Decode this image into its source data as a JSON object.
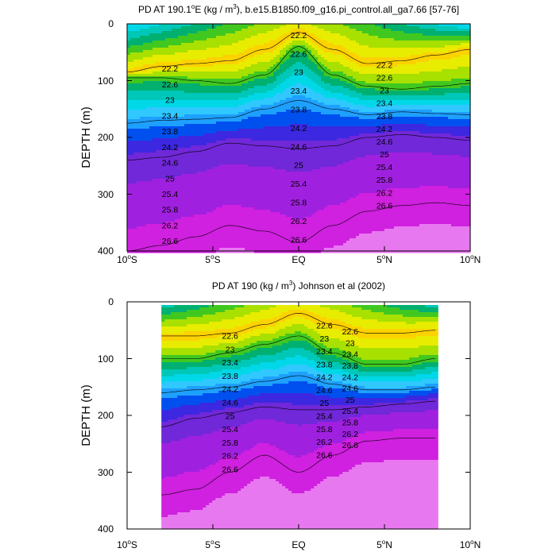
{
  "colors": {
    "scale": [
      "#cc0000",
      "#e21818",
      "#ef3a00",
      "#f76600",
      "#f98c00",
      "#fbb000",
      "#fcd200",
      "#e8ec00",
      "#a8e000",
      "#40c820",
      "#00b070",
      "#00c8b8",
      "#00d8e8",
      "#30c8ff",
      "#1ea0ff",
      "#0050f0",
      "#3c28e0",
      "#7028d8",
      "#a020e0",
      "#d020e0",
      "#e878f0"
    ]
  },
  "chart_data": [
    {
      "type": "contour",
      "title": "PD AT 190.1°E (kg / m³), b.e15.B1850.f09_g16.pi_control.all_ga7.66 [57-76]",
      "title_parts": {
        "a": "PD AT 190.1",
        "sup": "o",
        "b": "E (kg / m",
        "sup2": "3",
        "c": "), b.e15.B1850.f09_g16.pi_control.all_ga7.66 [57-76]"
      },
      "xlabel": "",
      "ylabel": "DEPTH (m)",
      "xlim": [
        -10,
        10
      ],
      "ylim": [
        400,
        0
      ],
      "xticks": [
        {
          "v": -10,
          "a": "10",
          "sup": "o",
          "b": "S"
        },
        {
          "v": -5,
          "a": "5",
          "sup": "o",
          "b": "S"
        },
        {
          "v": 0,
          "a": "EQ",
          "sup": "",
          "b": ""
        },
        {
          "v": 5,
          "a": "5",
          "sup": "o",
          "b": "N"
        },
        {
          "v": 10,
          "a": "10",
          "sup": "o",
          "b": "N"
        }
      ],
      "yticks": [
        "0",
        "100",
        "200",
        "300",
        "400"
      ],
      "data_xrange": [
        -10,
        10
      ],
      "field": {
        "x": [
          -10,
          -8,
          -6,
          -4,
          -2,
          0,
          2,
          4,
          6,
          8,
          10
        ],
        "mixed_layer_depth_m": [
          85,
          75,
          70,
          65,
          45,
          15,
          45,
          70,
          65,
          55,
          45
        ],
        "d23_m": [
          95,
          95,
          100,
          105,
          90,
          40,
          90,
          110,
          115,
          110,
          105
        ],
        "d25_m": [
          175,
          170,
          168,
          165,
          150,
          135,
          150,
          160,
          155,
          158,
          160
        ],
        "d26_m": [
          240,
          235,
          225,
          210,
          215,
          220,
          215,
          200,
          195,
          200,
          205
        ],
        "d26_6_m": [
          400,
          390,
          375,
          355,
          365,
          385,
          355,
          330,
          320,
          315,
          320
        ]
      },
      "contour_labels": [
        "22.2",
        "22.6",
        "23",
        "23.4",
        "23.8",
        "24.2",
        "24.6",
        "25",
        "25.4",
        "25.8",
        "26.2",
        "26.6"
      ]
    },
    {
      "type": "contour",
      "title": "PD AT 190 (kg / m³) Johnson et al (2002)",
      "title_parts": {
        "a": "PD AT 190 (kg / m",
        "sup": "3",
        "b": ") Johnson et al (2002)"
      },
      "xlabel": "",
      "ylabel": "DEPTH (m)",
      "xlim": [
        -10,
        10
      ],
      "ylim": [
        400,
        0
      ],
      "xticks": [
        {
          "v": -10,
          "a": "10",
          "sup": "o",
          "b": "S"
        },
        {
          "v": -5,
          "a": "5",
          "sup": "o",
          "b": "S"
        },
        {
          "v": 0,
          "a": "EQ",
          "sup": "",
          "b": ""
        },
        {
          "v": 5,
          "a": "5",
          "sup": "o",
          "b": "N"
        },
        {
          "v": 10,
          "a": "10",
          "sup": "o",
          "b": "N"
        }
      ],
      "yticks": [
        "0",
        "100",
        "200",
        "300",
        "400"
      ],
      "data_xrange": [
        -8,
        8
      ],
      "field": {
        "x": [
          -8,
          -6,
          -4,
          -2,
          0,
          2,
          4,
          6,
          8
        ],
        "mixed_layer_depth_m": [
          60,
          60,
          55,
          40,
          20,
          40,
          55,
          55,
          50
        ],
        "d23_m": [
          100,
          100,
          90,
          75,
          60,
          90,
          110,
          110,
          100
        ],
        "d25_m": [
          160,
          155,
          150,
          140,
          130,
          145,
          155,
          155,
          150
        ],
        "d26_m": [
          220,
          205,
          195,
          185,
          190,
          190,
          185,
          180,
          175
        ],
        "d26_6_m": [
          340,
          330,
          300,
          270,
          300,
          270,
          245,
          240,
          240
        ]
      },
      "contour_labels": [
        "22.6",
        "23",
        "23.4",
        "23.8",
        "24.2",
        "24.6",
        "25",
        "25.4",
        "25.8",
        "26.2",
        "26.6"
      ]
    }
  ]
}
